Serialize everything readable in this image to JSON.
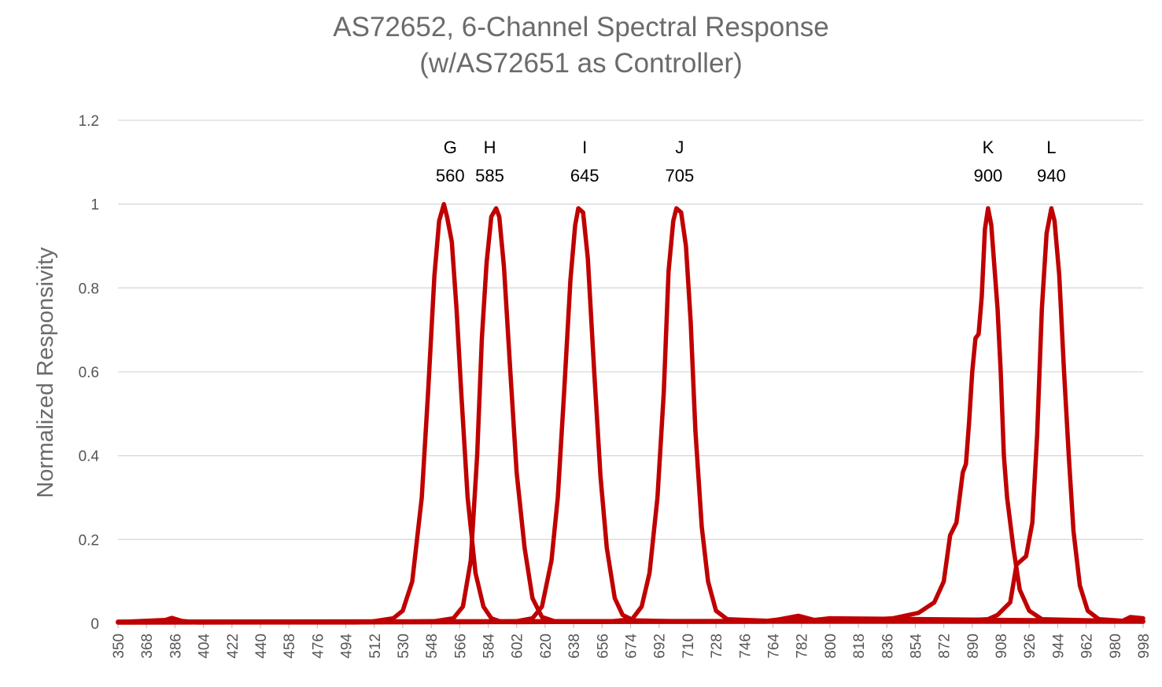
{
  "chart_data": {
    "type": "line",
    "title": [
      "AS72652, 6-Channel Spectral Response",
      "(w/AS72651 as Controller)"
    ],
    "xlabel": "",
    "ylabel": "Normalized Responsivity",
    "xlim": [
      350,
      998
    ],
    "ylim": [
      0,
      1.2
    ],
    "y_ticks": [
      0,
      0.2,
      0.4,
      0.6,
      0.8,
      1,
      1.2
    ],
    "y_tick_labels": [
      "0",
      "0.2",
      "0.4",
      "0.6",
      "0.8",
      "1",
      "1.2"
    ],
    "x_tick_labels": [
      "350",
      "368",
      "386",
      "404",
      "422",
      "440",
      "458",
      "476",
      "494",
      "512",
      "530",
      "548",
      "566",
      "584",
      "602",
      "620",
      "638",
      "656",
      "674",
      "692",
      "710",
      "728",
      "746",
      "764",
      "782",
      "800",
      "818",
      "836",
      "854",
      "872",
      "890",
      "908",
      "926",
      "944",
      "962",
      "980",
      "998"
    ],
    "grid": true,
    "line_color": "#c00000",
    "series": [
      {
        "name": "G",
        "peak": 560,
        "points": [
          [
            350,
            0.003
          ],
          [
            380,
            0.008
          ],
          [
            384,
            0.013
          ],
          [
            390,
            0.006
          ],
          [
            400,
            0.002
          ],
          [
            480,
            0.003
          ],
          [
            510,
            0.004
          ],
          [
            524,
            0.012
          ],
          [
            530,
            0.03
          ],
          [
            536,
            0.1
          ],
          [
            542,
            0.3
          ],
          [
            546,
            0.55
          ],
          [
            550,
            0.83
          ],
          [
            553,
            0.96
          ],
          [
            556,
            1.0
          ],
          [
            558,
            0.97
          ],
          [
            561,
            0.91
          ],
          [
            564,
            0.75
          ],
          [
            567,
            0.55
          ],
          [
            571,
            0.3
          ],
          [
            576,
            0.12
          ],
          [
            581,
            0.04
          ],
          [
            586,
            0.012
          ],
          [
            592,
            0.004
          ],
          [
            600,
            0.003
          ],
          [
            700,
            0.004
          ],
          [
            800,
            0.006
          ],
          [
            998,
            0.005
          ]
        ]
      },
      {
        "name": "H",
        "peak": 585,
        "points": [
          [
            350,
            0.002
          ],
          [
            500,
            0.002
          ],
          [
            550,
            0.005
          ],
          [
            562,
            0.012
          ],
          [
            568,
            0.04
          ],
          [
            573,
            0.15
          ],
          [
            577,
            0.4
          ],
          [
            580,
            0.68
          ],
          [
            583,
            0.86
          ],
          [
            586,
            0.97
          ],
          [
            589,
            0.99
          ],
          [
            591,
            0.97
          ],
          [
            594,
            0.85
          ],
          [
            598,
            0.6
          ],
          [
            602,
            0.36
          ],
          [
            607,
            0.18
          ],
          [
            612,
            0.06
          ],
          [
            618,
            0.015
          ],
          [
            626,
            0.005
          ],
          [
            700,
            0.004
          ],
          [
            998,
            0.004
          ]
        ]
      },
      {
        "name": "I",
        "peak": 645,
        "points": [
          [
            350,
            0.002
          ],
          [
            580,
            0.003
          ],
          [
            602,
            0.005
          ],
          [
            612,
            0.012
          ],
          [
            618,
            0.04
          ],
          [
            624,
            0.15
          ],
          [
            628,
            0.3
          ],
          [
            632,
            0.55
          ],
          [
            636,
            0.82
          ],
          [
            639,
            0.95
          ],
          [
            641,
            0.99
          ],
          [
            644,
            0.98
          ],
          [
            647,
            0.87
          ],
          [
            651,
            0.6
          ],
          [
            655,
            0.35
          ],
          [
            659,
            0.18
          ],
          [
            664,
            0.06
          ],
          [
            669,
            0.02
          ],
          [
            676,
            0.007
          ],
          [
            700,
            0.005
          ],
          [
            998,
            0.005
          ]
        ]
      },
      {
        "name": "J",
        "peak": 705,
        "points": [
          [
            350,
            0.002
          ],
          [
            600,
            0.003
          ],
          [
            660,
            0.004
          ],
          [
            675,
            0.01
          ],
          [
            681,
            0.04
          ],
          [
            686,
            0.12
          ],
          [
            691,
            0.3
          ],
          [
            695,
            0.55
          ],
          [
            698,
            0.84
          ],
          [
            701,
            0.96
          ],
          [
            703,
            0.99
          ],
          [
            706,
            0.98
          ],
          [
            709,
            0.9
          ],
          [
            712,
            0.72
          ],
          [
            715,
            0.46
          ],
          [
            719,
            0.23
          ],
          [
            723,
            0.1
          ],
          [
            728,
            0.03
          ],
          [
            735,
            0.01
          ],
          [
            760,
            0.006
          ],
          [
            782,
            0.015
          ],
          [
            790,
            0.006
          ],
          [
            800,
            0.012
          ],
          [
            998,
            0.005
          ]
        ]
      },
      {
        "name": "K",
        "peak": 900,
        "points": [
          [
            350,
            0.003
          ],
          [
            760,
            0.004
          ],
          [
            780,
            0.018
          ],
          [
            790,
            0.008
          ],
          [
            800,
            0.012
          ],
          [
            820,
            0.008
          ],
          [
            840,
            0.012
          ],
          [
            856,
            0.025
          ],
          [
            866,
            0.05
          ],
          [
            872,
            0.1
          ],
          [
            876,
            0.21
          ],
          [
            880,
            0.24
          ],
          [
            884,
            0.36
          ],
          [
            886,
            0.38
          ],
          [
            888,
            0.48
          ],
          [
            890,
            0.6
          ],
          [
            892,
            0.68
          ],
          [
            894,
            0.69
          ],
          [
            896,
            0.78
          ],
          [
            898,
            0.94
          ],
          [
            900,
            0.99
          ],
          [
            902,
            0.95
          ],
          [
            904,
            0.85
          ],
          [
            906,
            0.75
          ],
          [
            908,
            0.6
          ],
          [
            910,
            0.4
          ],
          [
            912,
            0.3
          ],
          [
            916,
            0.18
          ],
          [
            920,
            0.08
          ],
          [
            926,
            0.03
          ],
          [
            934,
            0.01
          ],
          [
            998,
            0.004
          ]
        ]
      },
      {
        "name": "L",
        "peak": 940,
        "points": [
          [
            350,
            0.004
          ],
          [
            880,
            0.006
          ],
          [
            900,
            0.01
          ],
          [
            906,
            0.02
          ],
          [
            910,
            0.035
          ],
          [
            914,
            0.05
          ],
          [
            918,
            0.14
          ],
          [
            924,
            0.16
          ],
          [
            928,
            0.24
          ],
          [
            931,
            0.45
          ],
          [
            934,
            0.75
          ],
          [
            937,
            0.93
          ],
          [
            940,
            0.99
          ],
          [
            942,
            0.96
          ],
          [
            945,
            0.83
          ],
          [
            948,
            0.6
          ],
          [
            951,
            0.4
          ],
          [
            954,
            0.22
          ],
          [
            958,
            0.09
          ],
          [
            963,
            0.03
          ],
          [
            970,
            0.01
          ],
          [
            985,
            0.006
          ],
          [
            990,
            0.015
          ],
          [
            998,
            0.012
          ]
        ]
      }
    ],
    "annotations": [
      {
        "name": "G",
        "wavelength": "560"
      },
      {
        "name": "H",
        "wavelength": "585"
      },
      {
        "name": "I",
        "wavelength": "645"
      },
      {
        "name": "J",
        "wavelength": "705"
      },
      {
        "name": "K",
        "wavelength": "900"
      },
      {
        "name": "L",
        "wavelength": "940"
      }
    ]
  }
}
